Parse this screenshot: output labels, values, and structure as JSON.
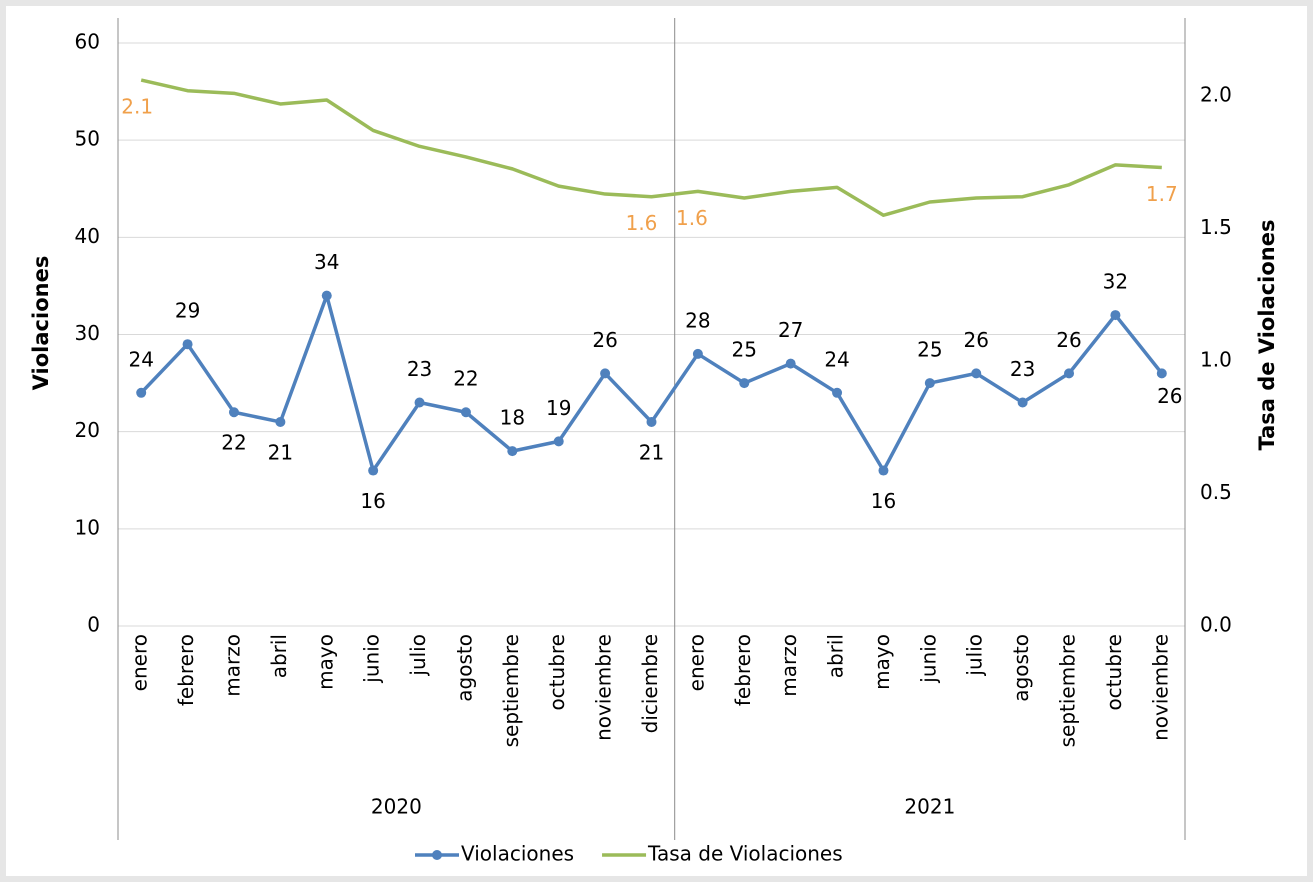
{
  "chart_data": {
    "type": "line",
    "y_label": "Violaciones",
    "y2_label": "Tasa de Violaciones",
    "category_groups": [
      {
        "name": "2020",
        "categories": [
          "enero",
          "febrero",
          "marzo",
          "abril",
          "mayo",
          "junio",
          "julio",
          "agosto",
          "septiembre",
          "octubre",
          "noviembre",
          "diciembre"
        ]
      },
      {
        "name": "2021",
        "categories": [
          "enero",
          "febrero",
          "marzo",
          "abril",
          "mayo",
          "junio",
          "julio",
          "agosto",
          "septiembre",
          "octubre",
          "noviembre"
        ]
      }
    ],
    "series": [
      {
        "name": "Violaciones",
        "color": "#4f81bd",
        "markers": true,
        "values": [
          24,
          29,
          22,
          21,
          34,
          16,
          23,
          22,
          18,
          19,
          26,
          21,
          28,
          25,
          27,
          24,
          16,
          25,
          26,
          23,
          26,
          32,
          26
        ]
      },
      {
        "name": "Tasa de Violaciones",
        "color": "#9bbb59",
        "axis": "y2",
        "label_color": "#f0a04b",
        "values": [
          2.06,
          2.02,
          2.01,
          1.97,
          1.985,
          1.87,
          1.81,
          1.77,
          1.725,
          1.66,
          1.63,
          1.62,
          1.64,
          1.615,
          1.64,
          1.655,
          1.55,
          1.6,
          1.615,
          1.62,
          1.665,
          1.74,
          1.73
        ],
        "value_labels": [
          "2.1",
          null,
          null,
          null,
          null,
          null,
          null,
          null,
          null,
          null,
          null,
          "1.6",
          "1.6",
          null,
          null,
          null,
          null,
          null,
          null,
          null,
          null,
          null,
          "1.7"
        ]
      }
    ],
    "ylim": [
      0,
      60
    ],
    "yticks": [
      0,
      10,
      20,
      30,
      40,
      50,
      60
    ],
    "y2lim": [
      0,
      2.2
    ],
    "y2ticks": [
      {
        "value": 0,
        "label": "0.0"
      },
      0.5,
      {
        "value": 1,
        "label": "1.0"
      },
      1.5,
      {
        "value": 2,
        "label": "2.0"
      }
    ],
    "grid": true,
    "legend": "bottom"
  }
}
